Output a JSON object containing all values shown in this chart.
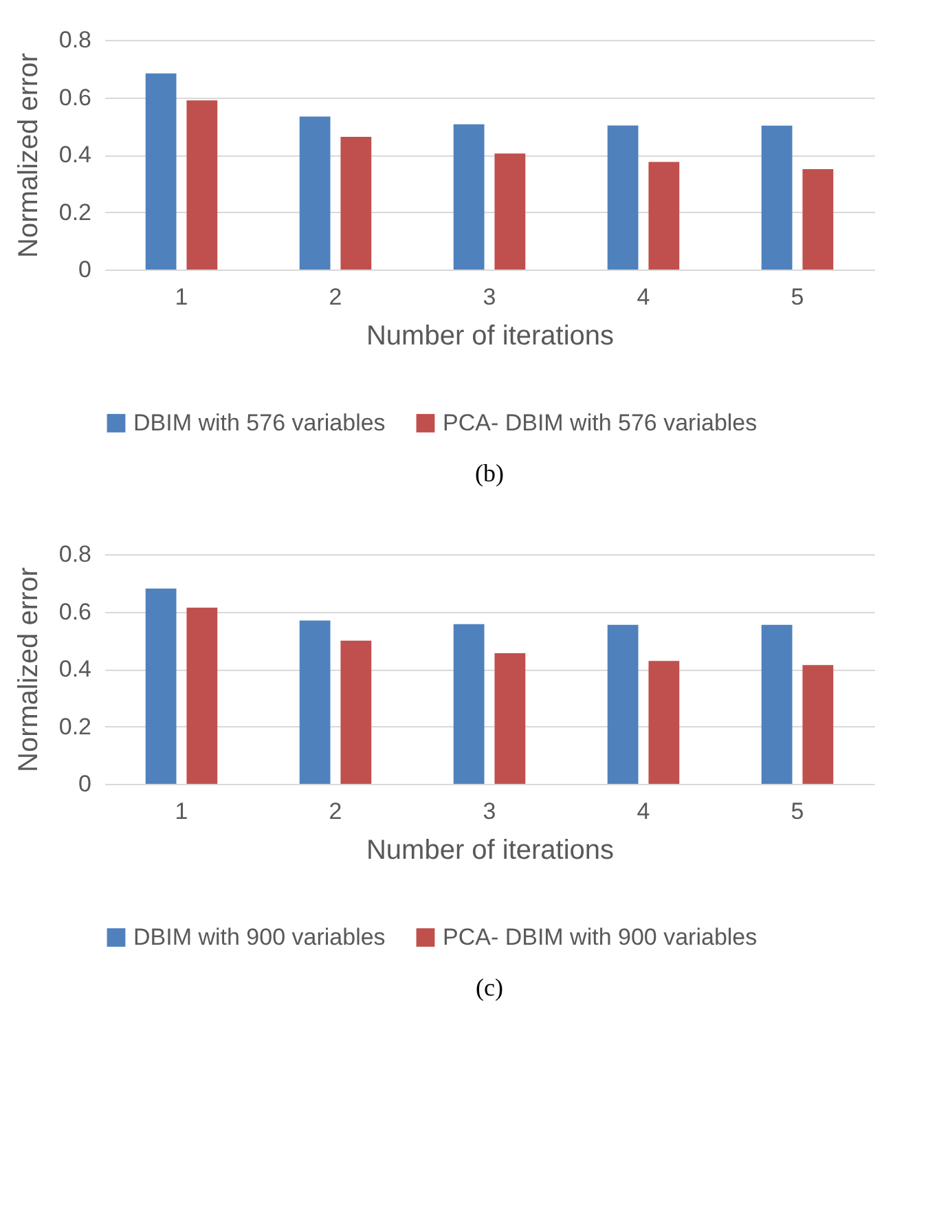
{
  "chart_data": [
    {
      "type": "bar",
      "xlabel": "Number of iterations",
      "ylabel": "Normalized error",
      "categories": [
        "1",
        "2",
        "3",
        "4",
        "5"
      ],
      "ylim": [
        0,
        0.8
      ],
      "yticks": [
        0,
        0.2,
        0.4,
        0.6,
        0.8
      ],
      "grid": "y",
      "legend": "bottom",
      "annotations": [
        "(b)"
      ],
      "series": [
        {
          "name": "DBIM with 576 variables",
          "color": "#4f81bd",
          "values": [
            0.683,
            0.533,
            0.506,
            0.502,
            0.501
          ]
        },
        {
          "name": "PCA- DBIM with 576 variables",
          "color": "#c0504d",
          "values": [
            0.589,
            0.462,
            0.404,
            0.375,
            0.35
          ]
        }
      ]
    },
    {
      "type": "bar",
      "xlabel": "Number of iterations",
      "ylabel": "Normalized error",
      "categories": [
        "1",
        "2",
        "3",
        "4",
        "5"
      ],
      "ylim": [
        0,
        0.8
      ],
      "yticks": [
        0,
        0.2,
        0.4,
        0.6,
        0.8
      ],
      "grid": "y",
      "legend": "bottom",
      "annotations": [
        "(c)"
      ],
      "series": [
        {
          "name": "DBIM with 900 variables",
          "color": "#4f81bd",
          "values": [
            0.68,
            0.569,
            0.556,
            0.554,
            0.554
          ]
        },
        {
          "name": "PCA- DBIM with 900 variables",
          "color": "#c0504d",
          "values": [
            0.614,
            0.499,
            0.455,
            0.428,
            0.414
          ]
        }
      ]
    }
  ]
}
